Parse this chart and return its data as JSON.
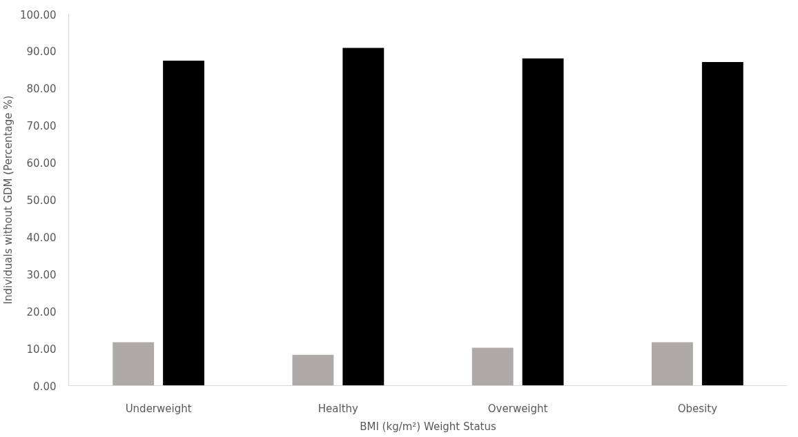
{
  "chart_data": {
    "type": "bar",
    "xlabel": "BMI (kg/m²) Weight Status",
    "ylabel": "Individuals without GDM (Percentage %)",
    "categories": [
      "Underweight",
      "Healthy",
      "Overweight",
      "Obesity"
    ],
    "series": [
      {
        "color": "#aeaaaa",
        "values": [
          11.7,
          8.3,
          10.2,
          11.7
        ]
      },
      {
        "color": "#000000",
        "values": [
          87.5,
          90.9,
          88.1,
          87.1
        ]
      }
    ],
    "ylim": [
      0,
      100
    ],
    "yticks": [
      {
        "value": 0,
        "label": "0.00"
      },
      {
        "value": 10,
        "label": "10.00"
      },
      {
        "value": 20,
        "label": "20.00"
      },
      {
        "value": 30,
        "label": "30.00"
      },
      {
        "value": 40,
        "label": "40.00"
      },
      {
        "value": 50,
        "label": "50.00"
      },
      {
        "value": 60,
        "label": "60.00"
      },
      {
        "value": 70,
        "label": "70.00"
      },
      {
        "value": 80,
        "label": "80.00"
      },
      {
        "value": 90,
        "label": "90.00"
      },
      {
        "value": 100,
        "label": "100.00"
      }
    ],
    "grid": false
  }
}
